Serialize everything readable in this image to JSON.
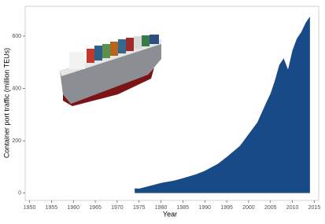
{
  "chart_data": {
    "type": "area",
    "x_label": "Year",
    "y_label": "Container port traffic (million TEUs)",
    "x": [
      1974,
      1975,
      1978,
      1980,
      1983,
      1985,
      1988,
      1990,
      1993,
      1995,
      1998,
      2000,
      2002,
      2004,
      2005,
      2006,
      2007,
      2008,
      2009,
      2010,
      2011,
      2012,
      2013,
      2014
    ],
    "series": [
      {
        "color": "#174a86",
        "values": [
          18,
          17,
          30,
          39,
          48,
          57,
          72,
          85,
          112,
          138,
          180,
          225,
          270,
          345,
          380,
          430,
          490,
          515,
          472,
          545,
          590,
          615,
          650,
          675
        ]
      }
    ],
    "xlim": [
      1949,
      2016
    ],
    "ylim": [
      -28,
      714
    ],
    "xticks": [
      1950,
      1955,
      1960,
      1965,
      1970,
      1975,
      1980,
      1985,
      1990,
      1995,
      2000,
      2005,
      2010,
      2015
    ],
    "yticks": [
      0,
      200,
      400,
      600
    ]
  }
}
